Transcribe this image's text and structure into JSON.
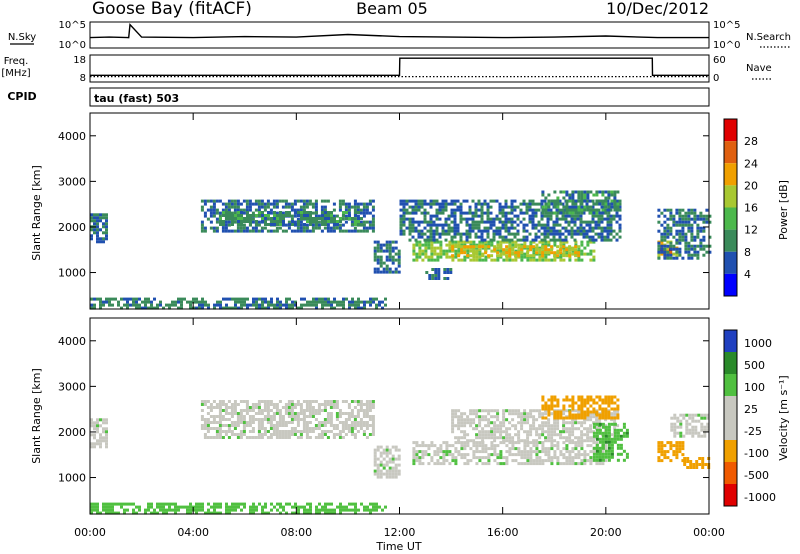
{
  "header": {
    "station": "Goose Bay (fitACF)",
    "beam": "Beam 05",
    "date": "10/Dec/2012"
  },
  "noise_panel": {
    "left_label": "N.Sky",
    "right_label": "N.Search",
    "left_ticks": [
      "10^5",
      "10^0"
    ],
    "right_ticks": [
      "10^5",
      "10^0"
    ]
  },
  "freq_panel": {
    "left_label_1": "Freq.",
    "left_label_2": "[MHz]",
    "right_label": "Nave",
    "left_ticks": [
      "18",
      "8"
    ],
    "right_ticks": [
      "60",
      "0"
    ]
  },
  "cpid": {
    "label": "CPID",
    "value": "tau (fast) 503"
  },
  "power_panel": {
    "colorbar_title": "Power [dB]",
    "colorbar_ticks": [
      "28",
      "24",
      "20",
      "16",
      "12",
      "8",
      "4"
    ]
  },
  "velocity_panel": {
    "colorbar_title": "Velocity [m s⁻¹]",
    "colorbar_ticks": [
      "1000",
      "500",
      "100",
      "25",
      "-25",
      "-100",
      "-500",
      "-1000"
    ]
  },
  "axes": {
    "ylabel": "Slant Range [km]",
    "xlabel": "Time UT",
    "y_ticks": [
      "1000",
      "2000",
      "3000",
      "4000"
    ],
    "x_ticks": [
      "00:00",
      "04:00",
      "08:00",
      "12:00",
      "16:00",
      "20:00",
      "00:00"
    ]
  },
  "colors": {
    "power_scale": [
      "#0000ff",
      "#2050b0",
      "#3a8a5a",
      "#4cb84c",
      "#a8c832",
      "#f0a000",
      "#e06010",
      "#e00000"
    ],
    "velocity_scale": [
      "#e00000",
      "#f05a00",
      "#f0a000",
      "#c8c8c0",
      "#c8c8c0",
      "#50c040",
      "#2a8a2a",
      "#2040c0"
    ],
    "ground_scatter": "#c8c8c0"
  },
  "chart_data": [
    {
      "type": "line",
      "name": "noise",
      "title": "",
      "x_unit": "UT hour",
      "x": [
        0,
        0.75,
        1.5,
        1.55,
        2,
        4,
        6,
        8,
        10,
        12,
        14,
        16,
        18,
        20,
        22,
        24
      ],
      "series": [
        {
          "values": [
            2.0,
            2.1,
            2.0,
            4.5,
            2.1,
            2.0,
            2.2,
            2.1,
            2.6,
            2.2,
            2.1,
            2.0,
            2.1,
            2.3,
            2.0,
            2.0
          ]
        }
      ],
      "ylim": [
        0,
        5
      ]
    },
    {
      "type": "line",
      "name": "frequency_and_nave",
      "title": "",
      "xlabel": "",
      "ylabel": "Freq. [MHz]",
      "x": [
        0,
        12,
        12.01,
        21.8,
        21.81,
        24
      ],
      "series": [
        {
          "values": [
            10.5,
            10.5,
            16.8,
            16.8,
            10.5,
            10.5
          ]
        },
        {
          "values": [
            10,
            10,
            10,
            10,
            10,
            10
          ]
        }
      ],
      "ylim": [
        8,
        18
      ]
    },
    {
      "type": "heatmap",
      "name": "power",
      "xlabel": "Time UT",
      "ylabel": "Slant Range [km]",
      "xlim": [
        0,
        24
      ],
      "ylim": [
        200,
        4500
      ],
      "x_unit": "UT hour",
      "regions": [
        {
          "t0": 0.0,
          "t1": 0.6,
          "r0": 1700,
          "r1": 2300,
          "value": 8
        },
        {
          "t0": 0.0,
          "t1": 11.5,
          "r0": 200,
          "r1": 450,
          "value": 9
        },
        {
          "t0": 4.3,
          "t1": 11.0,
          "r0": 1900,
          "r1": 2600,
          "value": 8
        },
        {
          "t0": 5.0,
          "t1": 10.5,
          "r0": 2050,
          "r1": 2350,
          "value": 10
        },
        {
          "t0": 11.0,
          "t1": 12.0,
          "r0": 1000,
          "r1": 1700,
          "value": 8
        },
        {
          "t0": 12.5,
          "t1": 19.5,
          "r0": 1300,
          "r1": 1700,
          "value": 16
        },
        {
          "t0": 14.0,
          "t1": 19.0,
          "r0": 1400,
          "r1": 1600,
          "value": 20
        },
        {
          "t0": 12.0,
          "t1": 20.5,
          "r0": 1700,
          "r1": 2600,
          "value": 8
        },
        {
          "t0": 17.5,
          "t1": 20.5,
          "r0": 2300,
          "r1": 2800,
          "value": 10
        },
        {
          "t0": 22.0,
          "t1": 22.8,
          "r0": 1350,
          "r1": 1700,
          "value": 20
        },
        {
          "t0": 22.1,
          "t1": 22.5,
          "r0": 1450,
          "r1": 1600,
          "value": 26
        },
        {
          "t0": 22.0,
          "t1": 24.0,
          "r0": 1300,
          "r1": 2400,
          "value": 8
        },
        {
          "t0": 13.0,
          "t1": 14.0,
          "r0": 900,
          "r1": 1100,
          "value": 8
        }
      ]
    },
    {
      "type": "heatmap",
      "name": "velocity",
      "xlabel": "Time UT",
      "ylabel": "Slant Range [km]",
      "xlim": [
        0,
        24
      ],
      "ylim": [
        200,
        4500
      ],
      "x_unit": "UT hour",
      "regions": [
        {
          "t0": 0.0,
          "t1": 0.6,
          "r0": 1700,
          "r1": 2300,
          "value": 0
        },
        {
          "t0": 0.0,
          "t1": 11.5,
          "r0": 250,
          "r1": 450,
          "value": 60
        },
        {
          "t0": 4.3,
          "t1": 11.0,
          "r0": 1900,
          "r1": 2700,
          "value": 0
        },
        {
          "t0": 11.0,
          "t1": 12.0,
          "r0": 1000,
          "r1": 1700,
          "value": 0
        },
        {
          "t0": 12.5,
          "t1": 20.0,
          "r0": 1300,
          "r1": 1800,
          "value": 0
        },
        {
          "t0": 14.0,
          "t1": 20.5,
          "r0": 1800,
          "r1": 2500,
          "value": 0
        },
        {
          "t0": 17.5,
          "t1": 20.5,
          "r0": 2300,
          "r1": 2800,
          "value": -150
        },
        {
          "t0": 19.5,
          "t1": 20.8,
          "r0": 1400,
          "r1": 2200,
          "value": 80
        },
        {
          "t0": 22.0,
          "t1": 23.0,
          "r0": 1400,
          "r1": 1800,
          "value": -300
        },
        {
          "t0": 22.5,
          "t1": 24.0,
          "r0": 1900,
          "r1": 2400,
          "value": 0
        },
        {
          "t0": 23.0,
          "t1": 24.0,
          "r0": 1250,
          "r1": 1450,
          "value": -200
        }
      ]
    }
  ]
}
